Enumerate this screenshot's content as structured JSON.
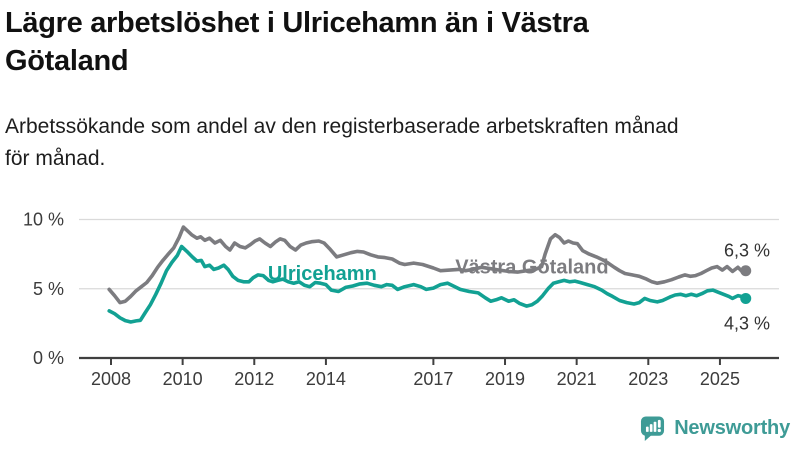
{
  "title": {
    "line1": "Lägre arbetslöshet i Ulricehamn än i Västra",
    "line2": "Götaland"
  },
  "subtitle": {
    "line1": "Arbetssökande som andel av den registerbaserade arbetskraften månad",
    "line2": "för månad."
  },
  "branding": {
    "name": "Newsworthy",
    "logo_icon": "bar-chart-speech-bubble-icon",
    "color": "#3E9B96"
  },
  "chart_data": {
    "type": "line",
    "title": "Lägre arbetslöshet i Ulricehamn än i Västra Götaland",
    "subtitle": "Arbetssökande som andel av den registerbaserade arbetskraften månad för månad.",
    "xlabel": "",
    "ylabel": "",
    "grid": true,
    "legend_position": "inline-labels",
    "x_axis": {
      "unit": "year",
      "range": [
        2007.8,
        2026.6
      ],
      "ticks": [
        2008,
        2010,
        2012,
        2014,
        2017,
        2019,
        2021,
        2023,
        2025
      ],
      "tick_labels": [
        "2008",
        "2010",
        "2012",
        "2014",
        "2017",
        "2019",
        "2021",
        "2023",
        "2025"
      ]
    },
    "y_axis": {
      "unit": "percent",
      "range": [
        0,
        11.6
      ],
      "ticks": [
        0,
        5,
        10
      ],
      "tick_labels": [
        "0 %",
        "5 %",
        "10 %"
      ]
    },
    "series": [
      {
        "name": "Västra Götaland",
        "color": "#7C7C80",
        "end_label": "6,3 %",
        "end_value": 6.3,
        "label_anchor": {
          "year": 2019.75,
          "value": 6.62
        },
        "end_label_side": "above",
        "points": [
          [
            2007.95,
            4.95
          ],
          [
            2008.1,
            4.5
          ],
          [
            2008.25,
            4.0
          ],
          [
            2008.4,
            4.1
          ],
          [
            2008.55,
            4.45
          ],
          [
            2008.7,
            4.85
          ],
          [
            2008.85,
            5.15
          ],
          [
            2009.0,
            5.45
          ],
          [
            2009.15,
            5.95
          ],
          [
            2009.3,
            6.55
          ],
          [
            2009.45,
            7.05
          ],
          [
            2009.6,
            7.5
          ],
          [
            2009.75,
            7.95
          ],
          [
            2009.9,
            8.7
          ],
          [
            2010.02,
            9.45
          ],
          [
            2010.15,
            9.15
          ],
          [
            2010.25,
            8.9
          ],
          [
            2010.4,
            8.65
          ],
          [
            2010.5,
            8.75
          ],
          [
            2010.62,
            8.5
          ],
          [
            2010.75,
            8.65
          ],
          [
            2010.9,
            8.3
          ],
          [
            2011.05,
            8.5
          ],
          [
            2011.2,
            8.05
          ],
          [
            2011.32,
            7.8
          ],
          [
            2011.45,
            8.3
          ],
          [
            2011.6,
            8.05
          ],
          [
            2011.75,
            7.95
          ],
          [
            2011.9,
            8.2
          ],
          [
            2012.02,
            8.45
          ],
          [
            2012.15,
            8.6
          ],
          [
            2012.3,
            8.3
          ],
          [
            2012.45,
            8.05
          ],
          [
            2012.6,
            8.4
          ],
          [
            2012.72,
            8.6
          ],
          [
            2012.85,
            8.5
          ],
          [
            2013.0,
            8.05
          ],
          [
            2013.15,
            7.8
          ],
          [
            2013.3,
            8.15
          ],
          [
            2013.45,
            8.3
          ],
          [
            2013.6,
            8.4
          ],
          [
            2013.8,
            8.45
          ],
          [
            2013.95,
            8.3
          ],
          [
            2014.1,
            7.9
          ],
          [
            2014.3,
            7.3
          ],
          [
            2014.5,
            7.45
          ],
          [
            2014.7,
            7.6
          ],
          [
            2014.88,
            7.7
          ],
          [
            2015.05,
            7.65
          ],
          [
            2015.25,
            7.45
          ],
          [
            2015.45,
            7.3
          ],
          [
            2015.65,
            7.25
          ],
          [
            2015.85,
            7.15
          ],
          [
            2016.05,
            6.85
          ],
          [
            2016.2,
            6.75
          ],
          [
            2016.45,
            6.85
          ],
          [
            2016.7,
            6.75
          ],
          [
            2017.0,
            6.5
          ],
          [
            2017.2,
            6.3
          ],
          [
            2017.45,
            6.35
          ],
          [
            2017.7,
            6.4
          ],
          [
            2017.9,
            6.3
          ],
          [
            2018.1,
            6.4
          ],
          [
            2018.35,
            6.55
          ],
          [
            2018.6,
            6.45
          ],
          [
            2018.85,
            6.35
          ],
          [
            2019.1,
            6.25
          ],
          [
            2019.35,
            6.2
          ],
          [
            2019.6,
            6.3
          ],
          [
            2019.85,
            6.4
          ],
          [
            2020.02,
            6.6
          ],
          [
            2020.12,
            7.5
          ],
          [
            2020.27,
            8.6
          ],
          [
            2020.4,
            8.9
          ],
          [
            2020.52,
            8.7
          ],
          [
            2020.65,
            8.3
          ],
          [
            2020.77,
            8.45
          ],
          [
            2020.9,
            8.3
          ],
          [
            2021.02,
            8.25
          ],
          [
            2021.17,
            7.75
          ],
          [
            2021.35,
            7.5
          ],
          [
            2021.55,
            7.3
          ],
          [
            2021.72,
            7.1
          ],
          [
            2021.88,
            6.85
          ],
          [
            2022.05,
            6.55
          ],
          [
            2022.2,
            6.3
          ],
          [
            2022.35,
            6.1
          ],
          [
            2022.55,
            6.0
          ],
          [
            2022.75,
            5.9
          ],
          [
            2022.95,
            5.7
          ],
          [
            2023.1,
            5.5
          ],
          [
            2023.25,
            5.4
          ],
          [
            2023.45,
            5.5
          ],
          [
            2023.65,
            5.65
          ],
          [
            2023.85,
            5.85
          ],
          [
            2024.02,
            6.0
          ],
          [
            2024.17,
            5.9
          ],
          [
            2024.32,
            5.95
          ],
          [
            2024.47,
            6.1
          ],
          [
            2024.62,
            6.3
          ],
          [
            2024.77,
            6.5
          ],
          [
            2024.92,
            6.6
          ],
          [
            2025.07,
            6.35
          ],
          [
            2025.2,
            6.6
          ],
          [
            2025.35,
            6.25
          ],
          [
            2025.5,
            6.55
          ],
          [
            2025.62,
            6.25
          ],
          [
            2025.72,
            6.3
          ]
        ]
      },
      {
        "name": "Ulricehamn",
        "color": "#12A193",
        "end_label": "4,3 %",
        "end_value": 4.3,
        "label_anchor": {
          "year": 2013.9,
          "value": 6.12
        },
        "end_label_side": "below",
        "points": [
          [
            2007.95,
            3.4
          ],
          [
            2008.1,
            3.2
          ],
          [
            2008.25,
            2.9
          ],
          [
            2008.4,
            2.7
          ],
          [
            2008.55,
            2.6
          ],
          [
            2008.7,
            2.68
          ],
          [
            2008.82,
            2.72
          ],
          [
            2008.95,
            3.25
          ],
          [
            2009.1,
            3.85
          ],
          [
            2009.25,
            4.6
          ],
          [
            2009.4,
            5.4
          ],
          [
            2009.55,
            6.3
          ],
          [
            2009.7,
            6.9
          ],
          [
            2009.85,
            7.4
          ],
          [
            2009.97,
            8.05
          ],
          [
            2010.12,
            7.7
          ],
          [
            2010.27,
            7.3
          ],
          [
            2010.4,
            7.0
          ],
          [
            2010.52,
            7.05
          ],
          [
            2010.62,
            6.6
          ],
          [
            2010.75,
            6.7
          ],
          [
            2010.87,
            6.4
          ],
          [
            2011.0,
            6.5
          ],
          [
            2011.15,
            6.7
          ],
          [
            2011.27,
            6.4
          ],
          [
            2011.4,
            5.9
          ],
          [
            2011.55,
            5.6
          ],
          [
            2011.7,
            5.5
          ],
          [
            2011.85,
            5.5
          ],
          [
            2011.97,
            5.8
          ],
          [
            2012.1,
            6.0
          ],
          [
            2012.25,
            5.95
          ],
          [
            2012.4,
            5.6
          ],
          [
            2012.52,
            5.5
          ],
          [
            2012.65,
            5.6
          ],
          [
            2012.8,
            5.7
          ],
          [
            2012.95,
            5.5
          ],
          [
            2013.1,
            5.4
          ],
          [
            2013.25,
            5.5
          ],
          [
            2013.4,
            5.25
          ],
          [
            2013.55,
            5.15
          ],
          [
            2013.7,
            5.45
          ],
          [
            2013.85,
            5.4
          ],
          [
            2014.0,
            5.3
          ],
          [
            2014.15,
            4.9
          ],
          [
            2014.35,
            4.8
          ],
          [
            2014.55,
            5.1
          ],
          [
            2014.75,
            5.2
          ],
          [
            2014.95,
            5.35
          ],
          [
            2015.15,
            5.4
          ],
          [
            2015.35,
            5.25
          ],
          [
            2015.55,
            5.15
          ],
          [
            2015.7,
            5.3
          ],
          [
            2015.85,
            5.25
          ],
          [
            2016.0,
            4.95
          ],
          [
            2016.2,
            5.15
          ],
          [
            2016.45,
            5.3
          ],
          [
            2016.65,
            5.15
          ],
          [
            2016.8,
            4.95
          ],
          [
            2017.0,
            5.05
          ],
          [
            2017.2,
            5.3
          ],
          [
            2017.4,
            5.4
          ],
          [
            2017.6,
            5.15
          ],
          [
            2017.75,
            4.95
          ],
          [
            2018.0,
            4.8
          ],
          [
            2018.25,
            4.7
          ],
          [
            2018.45,
            4.35
          ],
          [
            2018.6,
            4.1
          ],
          [
            2018.75,
            4.2
          ],
          [
            2018.9,
            4.35
          ],
          [
            2019.1,
            4.1
          ],
          [
            2019.25,
            4.2
          ],
          [
            2019.4,
            3.95
          ],
          [
            2019.6,
            3.75
          ],
          [
            2019.75,
            3.85
          ],
          [
            2019.9,
            4.1
          ],
          [
            2020.05,
            4.5
          ],
          [
            2020.2,
            5.0
          ],
          [
            2020.35,
            5.4
          ],
          [
            2020.5,
            5.5
          ],
          [
            2020.65,
            5.6
          ],
          [
            2020.8,
            5.5
          ],
          [
            2020.95,
            5.55
          ],
          [
            2021.1,
            5.45
          ],
          [
            2021.3,
            5.3
          ],
          [
            2021.5,
            5.15
          ],
          [
            2021.7,
            4.9
          ],
          [
            2021.85,
            4.65
          ],
          [
            2022.0,
            4.45
          ],
          [
            2022.2,
            4.15
          ],
          [
            2022.4,
            4.0
          ],
          [
            2022.6,
            3.9
          ],
          [
            2022.75,
            4.0
          ],
          [
            2022.9,
            4.3
          ],
          [
            2023.05,
            4.15
          ],
          [
            2023.25,
            4.05
          ],
          [
            2023.4,
            4.15
          ],
          [
            2023.6,
            4.4
          ],
          [
            2023.75,
            4.55
          ],
          [
            2023.9,
            4.6
          ],
          [
            2024.05,
            4.5
          ],
          [
            2024.2,
            4.6
          ],
          [
            2024.35,
            4.5
          ],
          [
            2024.5,
            4.65
          ],
          [
            2024.65,
            4.85
          ],
          [
            2024.8,
            4.9
          ],
          [
            2024.95,
            4.75
          ],
          [
            2025.1,
            4.6
          ],
          [
            2025.25,
            4.45
          ],
          [
            2025.35,
            4.3
          ],
          [
            2025.5,
            4.5
          ],
          [
            2025.6,
            4.45
          ],
          [
            2025.72,
            4.3
          ]
        ]
      }
    ],
    "colors": {
      "grid": "#DADADA",
      "axis": "#404040",
      "tick_text": "#3C3C3C",
      "end_label_text": "#333333"
    }
  }
}
